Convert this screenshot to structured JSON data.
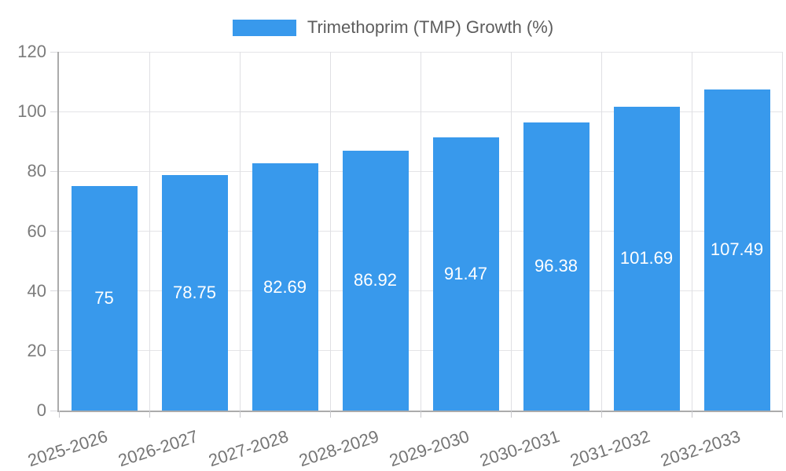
{
  "chart_data": {
    "type": "bar",
    "legend": {
      "label": "Trimethoprim (TMP) Growth (%)",
      "position": "top"
    },
    "categories": [
      "2025-2026",
      "2026-2027",
      "2027-2028",
      "2028-2029",
      "2029-2030",
      "2030-2031",
      "2031-2032",
      "2032-2033"
    ],
    "series": [
      {
        "name": "Trimethoprim (TMP) Growth (%)",
        "values": [
          75,
          78.75,
          82.69,
          86.92,
          91.47,
          96.38,
          101.69,
          107.49
        ],
        "value_labels": [
          "75",
          "78.75",
          "82.69",
          "86.92",
          "91.47",
          "96.38",
          "101.69",
          "107.49"
        ]
      }
    ],
    "xlabel": "",
    "ylabel": "",
    "ylim": [
      0,
      120
    ],
    "yticks": [
      0,
      20,
      40,
      60,
      80,
      100,
      120
    ],
    "grid": true,
    "x_label_rotation_deg": -18,
    "colors": {
      "bar": "#3899EC",
      "value_label": "#FFFFFF",
      "gridline": "#E4E4E7",
      "axis_line": "#ABABAB",
      "tick_label": "#7B7B7B",
      "legend_text": "#5D5D5D"
    }
  }
}
